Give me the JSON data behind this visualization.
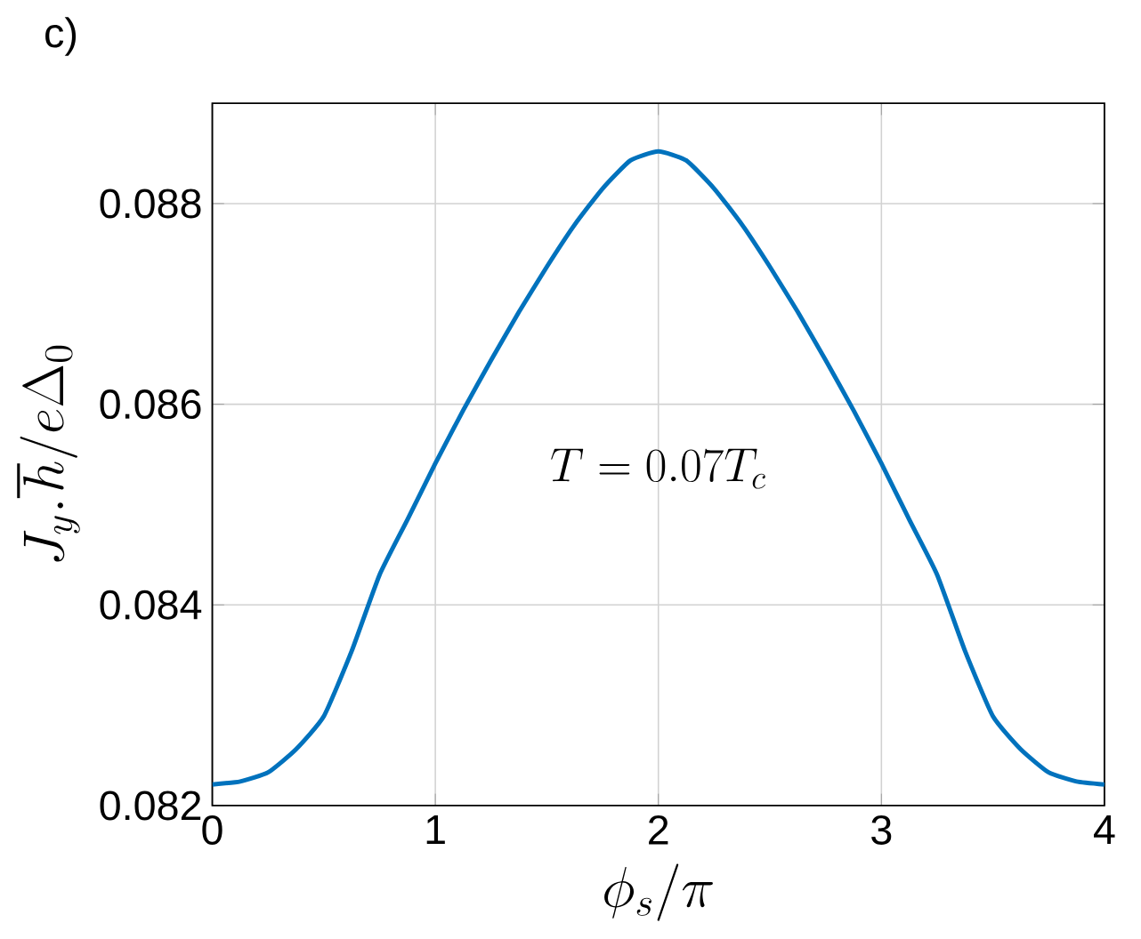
{
  "chart_data": {
    "type": "line",
    "title": "c)",
    "xlabel": "\\phi_s/\\pi",
    "ylabel": "J_y.\\hbar/e\\Delta_0",
    "x": [
      0,
      0.125,
      0.25,
      0.375,
      0.5,
      0.625,
      0.75,
      0.875,
      1,
      1.125,
      1.25,
      1.375,
      1.5,
      1.625,
      1.75,
      1.875,
      2,
      2.125,
      2.25,
      2.375,
      2.5,
      2.625,
      2.75,
      2.875,
      3,
      3.125,
      3.25,
      3.375,
      3.5,
      3.625,
      3.75,
      3.875,
      4
    ],
    "series": [
      {
        "color": "#0072bd",
        "values": [
          0.08221,
          0.08224,
          0.08233,
          0.08256,
          0.08289,
          0.08354,
          0.0843,
          0.08485,
          0.08541,
          0.08594,
          0.08644,
          0.08692,
          0.08737,
          0.08779,
          0.08815,
          0.08843,
          0.08852,
          0.08843,
          0.08815,
          0.08779,
          0.08737,
          0.08692,
          0.08644,
          0.08594,
          0.08541,
          0.08485,
          0.0843,
          0.08354,
          0.08289,
          0.08256,
          0.08233,
          0.08224,
          0.08221
        ]
      }
    ],
    "annotations": [
      "T=0.07T_c"
    ],
    "xlim": [
      0,
      4
    ],
    "ylim": [
      0.082,
      0.089
    ],
    "xticks": [
      0,
      1,
      2,
      3,
      4
    ],
    "yticks": [
      0.082,
      0.084,
      0.086,
      0.088
    ],
    "grid": true,
    "marker": "none",
    "line_style": "solid"
  }
}
